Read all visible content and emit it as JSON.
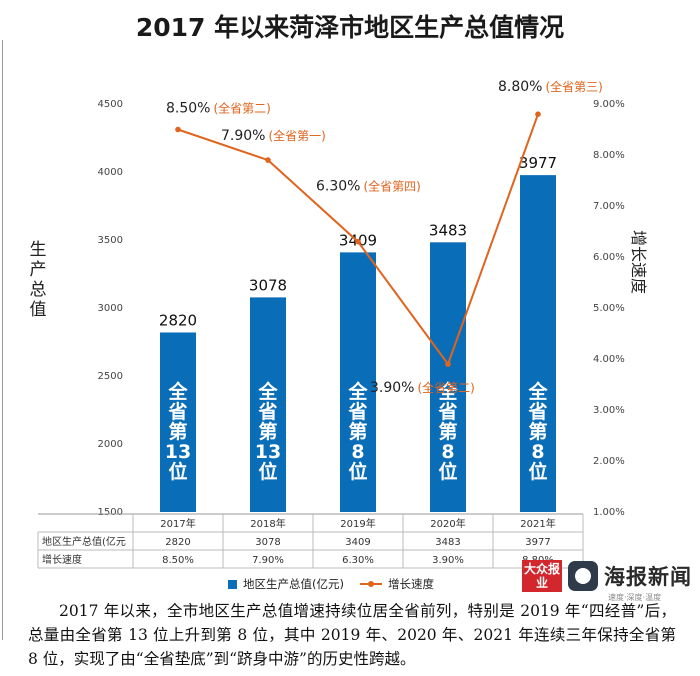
{
  "title": "2017 年以来菏泽市地区生产总值情况",
  "chart_data": {
    "type": "bar",
    "title": "2017 年以来菏泽市地区生产总值情况",
    "categories": [
      "2017年",
      "2018年",
      "2019年",
      "2020年",
      "2021年"
    ],
    "ylabel": "生产总值",
    "y2label": "增长速度",
    "ylim": [
      1500,
      4500
    ],
    "yticks": [
      "1500",
      "2000",
      "2500",
      "3000",
      "3500",
      "4000",
      "4500"
    ],
    "y2lim": [
      1.0,
      9.0
    ],
    "y2ticks": [
      "1.00%",
      "2.00%",
      "3.00%",
      "4.00%",
      "5.00%",
      "6.00%",
      "7.00%",
      "8.00%",
      "9.00%"
    ],
    "series": [
      {
        "name": "地区生产总值(亿元)",
        "type": "bar",
        "color": "#0a6db8",
        "values": [
          2820,
          3078,
          3409,
          3483,
          3977
        ],
        "value_labels": [
          "2820",
          "3078",
          "3409",
          "3483",
          "3977"
        ],
        "rank_labels": [
          "全省第13位",
          "全省第13位",
          "全省第8位",
          "全省第8位",
          "全省第8位"
        ]
      },
      {
        "name": "增长速度",
        "type": "line",
        "axis": "right",
        "color": "#e0641e",
        "values": [
          8.5,
          7.9,
          6.3,
          3.9,
          8.8
        ],
        "value_labels": [
          "8.50%",
          "7.90%",
          "6.30%",
          "3.90%",
          "8.80%"
        ],
        "notes": [
          "(全省第二)",
          "(全省第一)",
          "(全省第四)",
          "(全省第二)",
          "(全省第三)"
        ]
      }
    ],
    "table": {
      "rows": [
        {
          "label": "地区生产总值(亿元",
          "cells": [
            "2820",
            "3078",
            "3409",
            "3483",
            "3977"
          ]
        },
        {
          "label": "增长速度",
          "cells": [
            "8.50%",
            "7.90%",
            "6.30%",
            "3.90%",
            "8.80%"
          ]
        }
      ]
    },
    "legend": {
      "position": "bottom",
      "items": [
        "地区生产总值(亿元)",
        "增长速度"
      ]
    }
  },
  "logo": {
    "red_text": "大众报业",
    "name": "海报新闻",
    "sub": "速度·深度·温度"
  },
  "caption": "2017 年以来，全市地区生产总值增速持续位居全省前列，特别是 2019 年“四经普”后，总量由全省第 13 位上升到第 8 位，其中 2019 年、2020 年、2021 年连续三年保持全省第 8 位，实现了由“全省垫底”到“跻身中游”的历史性跨越。"
}
